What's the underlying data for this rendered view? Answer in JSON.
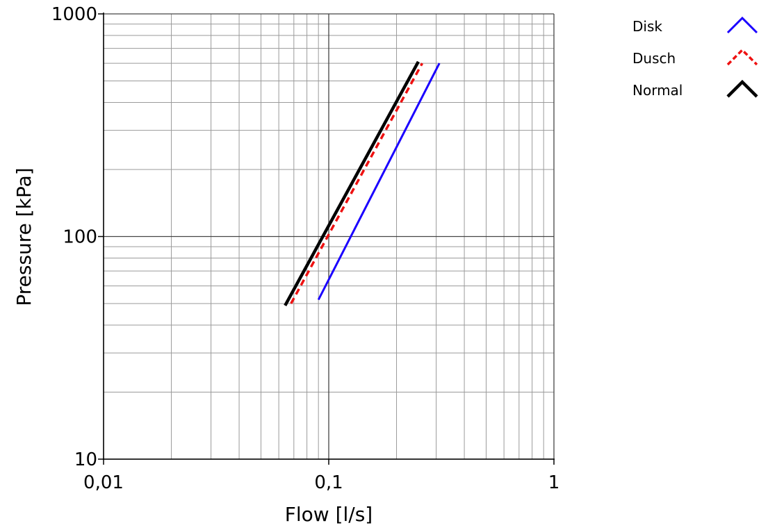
{
  "chart_data": {
    "type": "line",
    "xlabel": "Flow [l/s]",
    "ylabel": "Pressure [kPa]",
    "xscale": "log",
    "yscale": "log",
    "xlim": [
      0.01,
      1
    ],
    "ylim": [
      10,
      1000
    ],
    "x_ticks": [
      {
        "value": 0.01,
        "label": "0,01"
      },
      {
        "value": 0.1,
        "label": "0,1"
      },
      {
        "value": 1,
        "label": "1"
      }
    ],
    "y_ticks": [
      {
        "value": 10,
        "label": "10"
      },
      {
        "value": 100,
        "label": "100"
      },
      {
        "value": 1000,
        "label": "1000"
      }
    ],
    "grid": true,
    "legend_position": "top-right",
    "series": [
      {
        "name": "Disk",
        "color": "#1a00ff",
        "style": "solid",
        "points": [
          [
            0.09,
            52
          ],
          [
            0.31,
            600
          ]
        ]
      },
      {
        "name": "Dusch",
        "color": "#ee1111",
        "style": "dashed",
        "points": [
          [
            0.068,
            50
          ],
          [
            0.26,
            600
          ]
        ]
      },
      {
        "name": "Normal",
        "color": "#000000",
        "style": "solid",
        "points": [
          [
            0.064,
            49
          ],
          [
            0.25,
            610
          ]
        ]
      }
    ]
  }
}
